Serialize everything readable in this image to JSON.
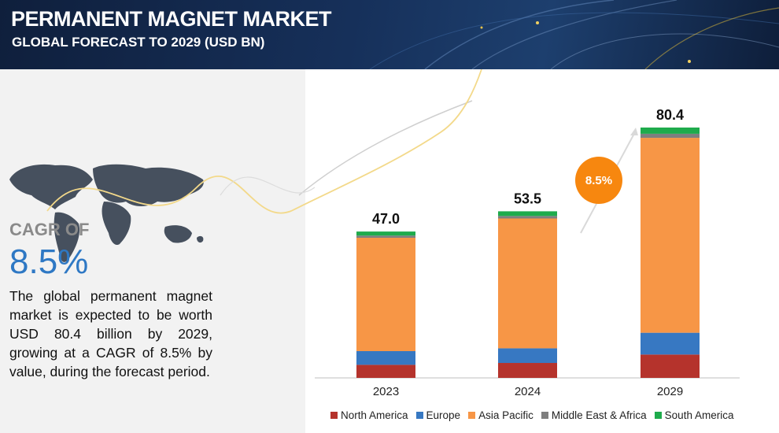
{
  "header": {
    "title": "PERMANENT MAGNET MARKET",
    "subtitle": "GLOBAL FORECAST TO 2029 (USD BN)"
  },
  "highlight": {
    "cagr_label": "CAGR OF",
    "cagr_value": "8.5%",
    "description": "The global permanent magnet market is expected to be worth USD  80.4 billion by 2029, growing at a CAGR of 8.5% by value, during the forecast period.",
    "bubble_label": "8.5%"
  },
  "chart_data": {
    "type": "bar",
    "stacked": true,
    "categories": [
      "2023",
      "2024",
      "2029"
    ],
    "totals": [
      47.0,
      53.5,
      80.4
    ],
    "total_labels": [
      "47.0",
      "53.5",
      "80.4"
    ],
    "series": [
      {
        "name": "North America",
        "color": "#b5332c",
        "values": [
          4.2,
          4.8,
          7.5
        ]
      },
      {
        "name": "Europe",
        "color": "#3778c2",
        "values": [
          4.4,
          4.7,
          7.0
        ]
      },
      {
        "name": "Asia Pacific",
        "color": "#f79646",
        "values": [
          36.4,
          41.7,
          62.6
        ]
      },
      {
        "name": "Middle East & Africa",
        "color": "#7f7f7f",
        "values": [
          0.7,
          0.8,
          1.3
        ]
      },
      {
        "name": "South America",
        "color": "#1fab4c",
        "values": [
          1.3,
          1.5,
          2.0
        ]
      }
    ],
    "ylim": [
      0,
      80.4
    ],
    "grid": false,
    "legend_position": "bottom"
  }
}
